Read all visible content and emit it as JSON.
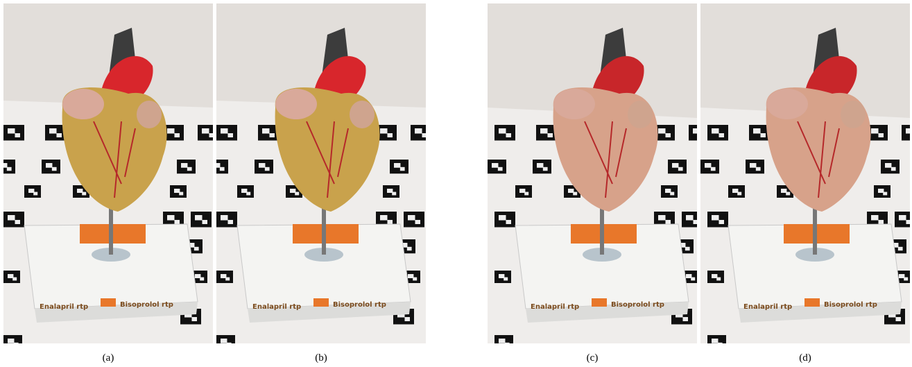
{
  "panels": [
    {
      "caption": "(a)",
      "labels": [
        "Enalapril rtp",
        "Bisoprolol rtp"
      ]
    },
    {
      "caption": "(b)",
      "labels": [
        "Enalapril rtp",
        "Bisoprolol rtp"
      ]
    },
    {
      "caption": "(c)",
      "labels": [
        "Enalapril rtp",
        "Bisoprolol rtp"
      ]
    },
    {
      "caption": "(d)",
      "labels": [
        "Enalapril rtp",
        "Bisoprolol rtp"
      ]
    }
  ]
}
